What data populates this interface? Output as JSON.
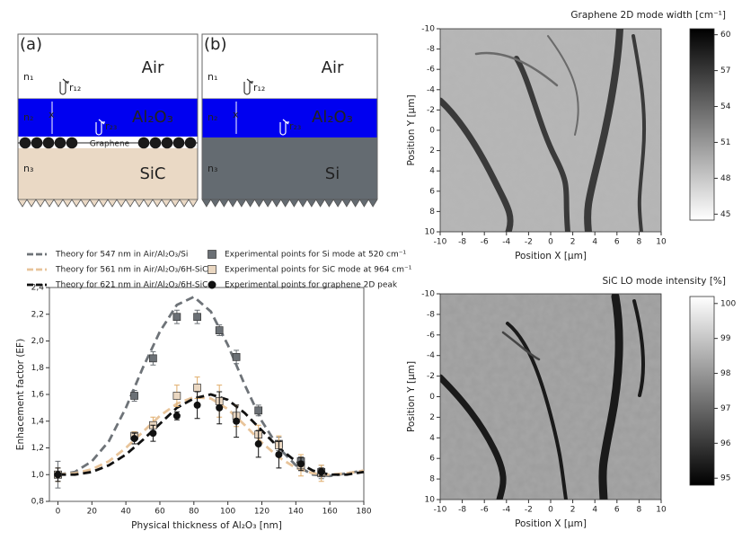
{
  "diagrams": {
    "panels": [
      {
        "label": "(a)",
        "top": "Air",
        "n1": "n₁",
        "r12": "r₁₂",
        "n2": "n₂",
        "x": "x",
        "layer": "Al₂O₃",
        "r23": "r₂₃",
        "interface": "Graphene",
        "n3": "n₃",
        "substrate": "SiC"
      },
      {
        "label": "(b)",
        "top": "Air",
        "n1": "n₁",
        "r12": "r₁₂",
        "n2": "n₂",
        "x": "x",
        "layer": "Al₂O₃",
        "r23": "r₂₃",
        "n3": "n₃",
        "substrate": "Si"
      }
    ]
  },
  "chart_data": [
    {
      "type": "line",
      "xlabel": "Physical thickness of Al₂O₃ [nm]",
      "ylabel": "Enhacement factor (EF)",
      "xlim": [
        -5,
        180
      ],
      "xticks": [
        0,
        20,
        40,
        60,
        80,
        100,
        120,
        140,
        160,
        180
      ],
      "ylim": [
        0.8,
        2.4
      ],
      "yticks": [
        {
          "value": 0.8,
          "label": "0,8"
        },
        {
          "value": 1.0,
          "label": "1,0"
        },
        {
          "value": 1.2,
          "label": "1,2"
        },
        {
          "value": 1.4,
          "label": "1,4"
        },
        {
          "value": 1.6,
          "label": "1,6"
        },
        {
          "value": 1.8,
          "label": "1,8"
        },
        {
          "value": 2.0,
          "label": "2,0"
        },
        {
          "value": 2.2,
          "label": "2,2"
        },
        {
          "value": 2.4,
          "label": "2,4"
        }
      ],
      "series": [
        {
          "name": "Theory for 547 nm in Air/Al₂O₃/Si",
          "kind": "line",
          "color": "#6e7378",
          "x": [
            0,
            10,
            20,
            30,
            40,
            50,
            60,
            70,
            80,
            90,
            100,
            110,
            120,
            130,
            140,
            150,
            160,
            170,
            180
          ],
          "values": [
            1.0,
            1.02,
            1.1,
            1.25,
            1.5,
            1.8,
            2.07,
            2.27,
            2.33,
            2.22,
            1.97,
            1.67,
            1.4,
            1.2,
            1.07,
            1.0,
            0.99,
            1.01,
            1.03
          ]
        },
        {
          "name": "Theory for 561 nm in Air/Al₂O₃/6H-SiC",
          "kind": "line",
          "color": "#e8c49a",
          "x": [
            0,
            10,
            20,
            30,
            40,
            50,
            60,
            70,
            80,
            90,
            100,
            110,
            120,
            130,
            140,
            150,
            160,
            170,
            180
          ],
          "values": [
            1.0,
            1.01,
            1.04,
            1.1,
            1.2,
            1.32,
            1.44,
            1.53,
            1.58,
            1.57,
            1.49,
            1.37,
            1.24,
            1.13,
            1.05,
            1.01,
            1.0,
            1.01,
            1.03
          ]
        },
        {
          "name": "Theory for 621 nm in Air/Al₂O₃/6H-SiC",
          "kind": "line",
          "color": "#111111",
          "x": [
            0,
            10,
            20,
            30,
            40,
            50,
            60,
            70,
            80,
            90,
            100,
            110,
            120,
            130,
            140,
            150,
            160,
            170,
            180
          ],
          "values": [
            1.0,
            1.0,
            1.02,
            1.07,
            1.15,
            1.26,
            1.38,
            1.5,
            1.57,
            1.6,
            1.56,
            1.46,
            1.33,
            1.2,
            1.1,
            1.03,
            1.0,
            1.0,
            1.02
          ]
        },
        {
          "name": "Experimental points for Si mode at 520 cm⁻¹",
          "kind": "square",
          "color": "#6b7075",
          "x": [
            0,
            45,
            56,
            70,
            82,
            95,
            105,
            118,
            130,
            143,
            155
          ],
          "values": [
            1.0,
            1.59,
            1.87,
            2.18,
            2.18,
            2.08,
            1.88,
            1.48,
            1.23,
            1.1,
            1.02
          ],
          "errors": [
            0.1,
            0.04,
            0.05,
            0.05,
            0.05,
            0.04,
            0.05,
            0.04,
            0.05,
            0.05,
            0.05
          ]
        },
        {
          "name": "Experimental points for SiC mode at 964 cm⁻¹",
          "kind": "square",
          "color": "#ead7c1",
          "x": [
            0,
            45,
            56,
            70,
            82,
            95,
            105,
            118,
            130,
            143,
            155
          ],
          "values": [
            1.0,
            1.29,
            1.37,
            1.59,
            1.65,
            1.55,
            1.44,
            1.3,
            1.22,
            1.07,
            1.01
          ],
          "errors": [
            0.05,
            0.03,
            0.06,
            0.08,
            0.08,
            0.12,
            0.08,
            0.07,
            0.07,
            0.08,
            0.06
          ]
        },
        {
          "name": "Experimental points for graphene 2D peak",
          "kind": "circle",
          "color": "#111111",
          "x": [
            0,
            45,
            56,
            70,
            82,
            95,
            105,
            118,
            130,
            143,
            155
          ],
          "values": [
            1.0,
            1.27,
            1.31,
            1.44,
            1.52,
            1.5,
            1.4,
            1.23,
            1.15,
            1.08,
            1.02
          ],
          "errors": [
            0.05,
            0.04,
            0.06,
            0.03,
            0.1,
            0.12,
            0.12,
            0.1,
            0.1,
            0.05,
            0.03
          ]
        }
      ]
    },
    {
      "type": "heatmap",
      "title": "Graphene 2D mode width [cm⁻¹]",
      "xlabel": "Position X [µm]",
      "ylabel": "Position Y [µm]",
      "xlim": [
        -10,
        10
      ],
      "xticks": [
        -10,
        -8,
        -6,
        -4,
        -2,
        0,
        2,
        4,
        6,
        8,
        10
      ],
      "ylim": [
        10,
        -10
      ],
      "yticks": [
        -10,
        -8,
        -6,
        -4,
        -2,
        0,
        2,
        4,
        6,
        8,
        10
      ],
      "clim": [
        44.5,
        60.5
      ],
      "cticks": [
        45,
        48,
        51,
        54,
        57,
        60
      ],
      "colormap": "gray_r"
    },
    {
      "type": "heatmap",
      "title": "SiC LO mode intensity [%]",
      "xlabel": "Position X [µm]",
      "ylabel": "Position Y [µm]",
      "xlim": [
        -10,
        10
      ],
      "xticks": [
        -10,
        -8,
        -6,
        -4,
        -2,
        0,
        2,
        4,
        6,
        8,
        10
      ],
      "ylim": [
        10,
        -10
      ],
      "yticks": [
        -10,
        -8,
        -6,
        -4,
        -2,
        0,
        2,
        4,
        6,
        8,
        10
      ],
      "clim": [
        94.8,
        100.2
      ],
      "cticks": [
        95,
        96,
        97,
        98,
        99,
        100
      ],
      "colormap": "gray"
    }
  ]
}
